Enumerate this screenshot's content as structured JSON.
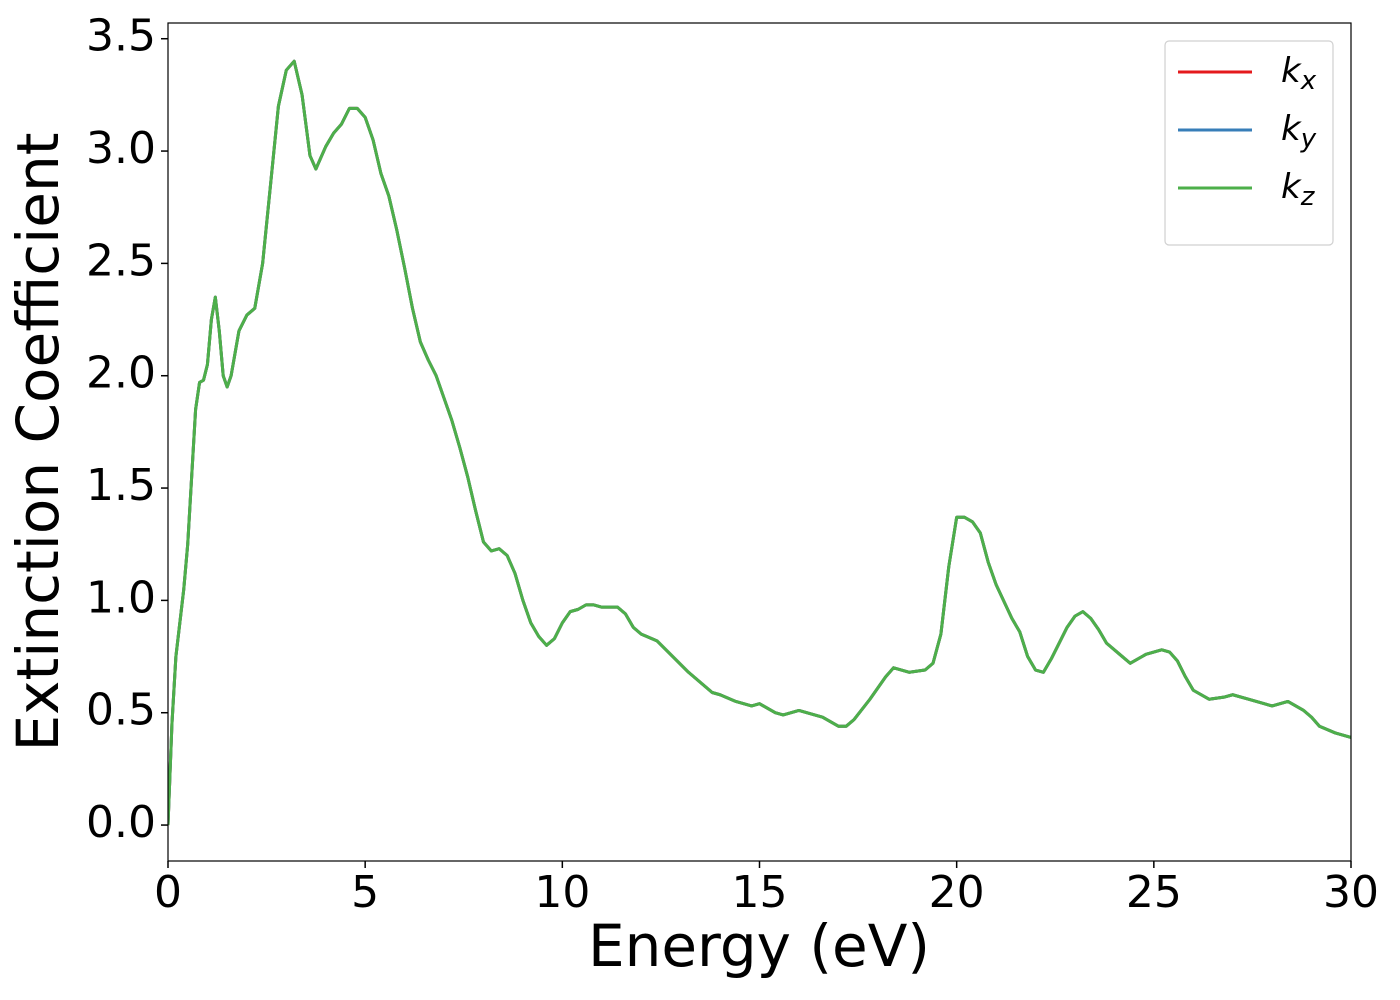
{
  "chart_data": {
    "type": "line",
    "x_label": "Energy (eV)",
    "y_label": "Extinction Coefficient",
    "xlim": [
      0,
      30
    ],
    "ylim": [
      -0.16,
      3.57
    ],
    "xticks": [
      0,
      5,
      10,
      15,
      20,
      25,
      30
    ],
    "yticks": [
      {
        "value": 0,
        "label": "0.0"
      },
      0.5,
      {
        "value": 1,
        "label": "1.0"
      },
      1.5,
      {
        "value": 2,
        "label": "2.0"
      },
      2.5,
      {
        "value": 3,
        "label": "3.0"
      },
      3.5
    ],
    "legend": "upper right",
    "x": [
      0,
      0.1,
      0.2,
      0.4,
      0.5,
      0.6,
      0.7,
      0.8,
      0.9,
      1.0,
      1.1,
      1.2,
      1.3,
      1.4,
      1.5,
      1.6,
      1.8,
      2.0,
      2.2,
      2.4,
      2.6,
      2.8,
      3.0,
      3.2,
      3.4,
      3.6,
      3.75,
      4.0,
      4.2,
      4.4,
      4.6,
      4.8,
      5.0,
      5.2,
      5.4,
      5.6,
      5.8,
      6.0,
      6.2,
      6.4,
      6.6,
      6.8,
      7.0,
      7.2,
      7.4,
      7.6,
      7.8,
      8.0,
      8.2,
      8.4,
      8.6,
      8.8,
      9.0,
      9.2,
      9.4,
      9.6,
      9.8,
      10.0,
      10.2,
      10.4,
      10.6,
      10.8,
      11.0,
      11.4,
      11.6,
      11.8,
      12.0,
      12.4,
      12.8,
      13.2,
      13.6,
      13.8,
      14.0,
      14.4,
      14.8,
      15.0,
      15.4,
      15.6,
      16.0,
      16.4,
      16.6,
      16.8,
      17.0,
      17.2,
      17.4,
      17.8,
      18.2,
      18.4,
      18.8,
      19.2,
      19.4,
      19.6,
      19.8,
      20.0,
      20.2,
      20.4,
      20.6,
      20.8,
      21.0,
      21.4,
      21.6,
      21.8,
      22.0,
      22.2,
      22.4,
      22.8,
      23.0,
      23.2,
      23.4,
      23.6,
      23.8,
      24.2,
      24.4,
      24.8,
      25.0,
      25.2,
      25.4,
      25.6,
      25.8,
      26.0,
      26.4,
      26.8,
      27.0,
      27.4,
      27.8,
      28.0,
      28.2,
      28.4,
      28.8,
      29.0,
      29.2,
      29.6,
      30.0
    ],
    "series": [
      {
        "name": "kx",
        "color": "#e41a1c",
        "values": [
          0,
          0.45,
          0.75,
          1.05,
          1.25,
          1.55,
          1.85,
          1.97,
          1.98,
          2.05,
          2.25,
          2.35,
          2.2,
          2.0,
          1.95,
          2.0,
          2.2,
          2.27,
          2.3,
          2.5,
          2.85,
          3.2,
          3.36,
          3.4,
          3.25,
          2.98,
          2.92,
          3.02,
          3.08,
          3.12,
          3.19,
          3.19,
          3.15,
          3.05,
          2.9,
          2.8,
          2.65,
          2.48,
          2.3,
          2.15,
          2.07,
          2.0,
          1.9,
          1.8,
          1.68,
          1.55,
          1.4,
          1.26,
          1.22,
          1.23,
          1.2,
          1.12,
          1.0,
          0.9,
          0.84,
          0.8,
          0.83,
          0.9,
          0.95,
          0.96,
          0.98,
          0.98,
          0.97,
          0.97,
          0.94,
          0.88,
          0.85,
          0.82,
          0.75,
          0.68,
          0.62,
          0.59,
          0.58,
          0.55,
          0.53,
          0.54,
          0.5,
          0.49,
          0.51,
          0.49,
          0.48,
          0.46,
          0.44,
          0.44,
          0.47,
          0.56,
          0.66,
          0.7,
          0.68,
          0.69,
          0.72,
          0.85,
          1.15,
          1.37,
          1.37,
          1.35,
          1.3,
          1.17,
          1.07,
          0.92,
          0.86,
          0.75,
          0.69,
          0.68,
          0.74,
          0.88,
          0.93,
          0.95,
          0.92,
          0.87,
          0.81,
          0.75,
          0.72,
          0.76,
          0.77,
          0.78,
          0.77,
          0.73,
          0.66,
          0.6,
          0.56,
          0.57,
          0.58,
          0.56,
          0.54,
          0.53,
          0.54,
          0.55,
          0.51,
          0.48,
          0.44,
          0.41,
          0.39
        ]
      },
      {
        "name": "ky",
        "color": "#377eb8",
        "values": [
          0,
          0.45,
          0.75,
          1.05,
          1.25,
          1.55,
          1.85,
          1.97,
          1.98,
          2.05,
          2.25,
          2.35,
          2.2,
          2.0,
          1.95,
          2.0,
          2.2,
          2.27,
          2.3,
          2.5,
          2.85,
          3.2,
          3.36,
          3.4,
          3.25,
          2.98,
          2.92,
          3.02,
          3.08,
          3.12,
          3.19,
          3.19,
          3.15,
          3.05,
          2.9,
          2.8,
          2.65,
          2.48,
          2.3,
          2.15,
          2.07,
          2.0,
          1.9,
          1.8,
          1.68,
          1.55,
          1.4,
          1.26,
          1.22,
          1.23,
          1.2,
          1.12,
          1.0,
          0.9,
          0.84,
          0.8,
          0.83,
          0.9,
          0.95,
          0.96,
          0.98,
          0.98,
          0.97,
          0.97,
          0.94,
          0.88,
          0.85,
          0.82,
          0.75,
          0.68,
          0.62,
          0.59,
          0.58,
          0.55,
          0.53,
          0.54,
          0.5,
          0.49,
          0.51,
          0.49,
          0.48,
          0.46,
          0.44,
          0.44,
          0.47,
          0.56,
          0.66,
          0.7,
          0.68,
          0.69,
          0.72,
          0.85,
          1.15,
          1.37,
          1.37,
          1.35,
          1.3,
          1.17,
          1.07,
          0.92,
          0.86,
          0.75,
          0.69,
          0.68,
          0.74,
          0.88,
          0.93,
          0.95,
          0.92,
          0.87,
          0.81,
          0.75,
          0.72,
          0.76,
          0.77,
          0.78,
          0.77,
          0.73,
          0.66,
          0.6,
          0.56,
          0.57,
          0.58,
          0.56,
          0.54,
          0.53,
          0.54,
          0.55,
          0.51,
          0.48,
          0.44,
          0.41,
          0.39
        ]
      },
      {
        "name": "kz",
        "color": "#4daf4a",
        "values": [
          0,
          0.45,
          0.75,
          1.05,
          1.25,
          1.55,
          1.85,
          1.97,
          1.98,
          2.05,
          2.25,
          2.35,
          2.2,
          2.0,
          1.95,
          2.0,
          2.2,
          2.27,
          2.3,
          2.5,
          2.85,
          3.2,
          3.36,
          3.4,
          3.25,
          2.98,
          2.92,
          3.02,
          3.08,
          3.12,
          3.19,
          3.19,
          3.15,
          3.05,
          2.9,
          2.8,
          2.65,
          2.48,
          2.3,
          2.15,
          2.07,
          2.0,
          1.9,
          1.8,
          1.68,
          1.55,
          1.4,
          1.26,
          1.22,
          1.23,
          1.2,
          1.12,
          1.0,
          0.9,
          0.84,
          0.8,
          0.83,
          0.9,
          0.95,
          0.96,
          0.98,
          0.98,
          0.97,
          0.97,
          0.94,
          0.88,
          0.85,
          0.82,
          0.75,
          0.68,
          0.62,
          0.59,
          0.58,
          0.55,
          0.53,
          0.54,
          0.5,
          0.49,
          0.51,
          0.49,
          0.48,
          0.46,
          0.44,
          0.44,
          0.47,
          0.56,
          0.66,
          0.7,
          0.68,
          0.69,
          0.72,
          0.85,
          1.15,
          1.37,
          1.37,
          1.35,
          1.3,
          1.17,
          1.07,
          0.92,
          0.86,
          0.75,
          0.69,
          0.68,
          0.74,
          0.88,
          0.93,
          0.95,
          0.92,
          0.87,
          0.81,
          0.75,
          0.72,
          0.76,
          0.77,
          0.78,
          0.77,
          0.73,
          0.66,
          0.6,
          0.56,
          0.57,
          0.58,
          0.56,
          0.54,
          0.53,
          0.54,
          0.55,
          0.51,
          0.48,
          0.44,
          0.41,
          0.39
        ]
      }
    ]
  }
}
